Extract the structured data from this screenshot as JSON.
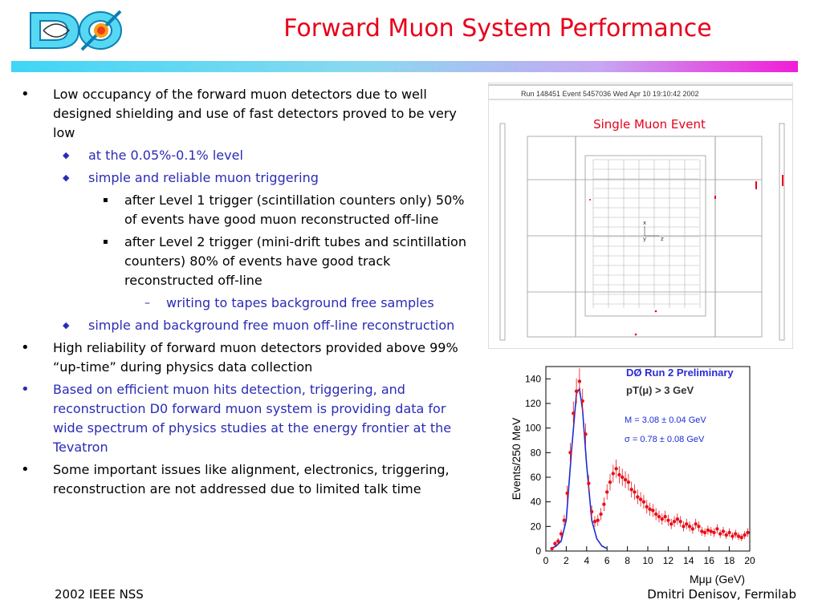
{
  "header": {
    "logo_text": "DØ",
    "title": "Forward Muon System Performance"
  },
  "bullets": [
    {
      "level": 1,
      "bullet": "•",
      "text": "Low occupancy of the forward muon detectors due to well designed shielding and use of fast detectors proved to be very low",
      "color": "#000000"
    },
    {
      "level": 2,
      "bullet": "◆",
      "text": " at the 0.05%-0.1% level",
      "color": "#2b2bb5"
    },
    {
      "level": 2,
      "bullet": "◆",
      "text": "simple and reliable muon triggering",
      "color": "#2b2bb5"
    },
    {
      "level": 3,
      "bullet": "▪",
      "text": "after Level 1 trigger (scintillation counters only) 50% of events have good muon reconstructed off-line",
      "color": "#000000"
    },
    {
      "level": 3,
      "bullet": "▪",
      "text": "after Level 2 trigger (mini-drift tubes and scintillation counters) 80% of events have good track  reconstructed off-line",
      "color": "#000000"
    },
    {
      "level": 4,
      "bullet": "–",
      "text": "writing to tapes background free samples",
      "color": "#2b2bb5"
    },
    {
      "level": 2,
      "bullet": "◆",
      "text": "simple and background free muon off-line reconstruction",
      "color": "#2b2bb5"
    },
    {
      "level": 1,
      "bullet": "•",
      "text": "High reliability of forward muon detectors provided above 99% “up-time” during physics data collection",
      "color": "#000000"
    },
    {
      "level": 1,
      "bullet": "•",
      "text": "Based on efficient muon hits detection, triggering, and reconstruction D0 forward muon system is providing data for wide spectrum of physics studies at the energy frontier at the Tevatron",
      "color": "#2b2bb5"
    },
    {
      "level": 1,
      "bullet": "•",
      "text": "Some important issues like alignment, electronics, triggering, reconstruction are not addressed due to limited talk time",
      "color": "#000000"
    }
  ],
  "event_display": {
    "header": "Run 148451 Event 5457036 Wed Apr 10 19:10:42 2002",
    "caption": "Single Muon Event",
    "axis_x": "x",
    "axis_y": "y",
    "axis_z": "z"
  },
  "chart_data": {
    "type": "scatter",
    "title": "DØ Run 2 Preliminary",
    "subtitle": "pT(μ) > 3 GeV",
    "xlabel": "Mμμ (GeV)",
    "ylabel": "Events/250 MeV",
    "xlim": [
      0,
      20
    ],
    "ylim": [
      0,
      150
    ],
    "xticks": [
      0,
      2,
      4,
      6,
      8,
      10,
      12,
      14,
      16,
      18,
      20
    ],
    "yticks": [
      0,
      20,
      40,
      60,
      80,
      100,
      120,
      140
    ],
    "annotations": [
      "M = 3.08 ± 0.04 GeV",
      "σ =  0.78 ± 0.08 GeV"
    ],
    "series": [
      {
        "points": [
          [
            0.6,
            2
          ],
          [
            0.9,
            6
          ],
          [
            1.2,
            8
          ],
          [
            1.5,
            14
          ],
          [
            1.8,
            25
          ],
          [
            2.1,
            47
          ],
          [
            2.4,
            80
          ],
          [
            2.7,
            112
          ],
          [
            3.0,
            130
          ],
          [
            3.3,
            138
          ],
          [
            3.6,
            122
          ],
          [
            3.9,
            95
          ],
          [
            4.2,
            55
          ],
          [
            4.5,
            32
          ],
          [
            4.8,
            24
          ],
          [
            5.1,
            25
          ],
          [
            5.4,
            30
          ],
          [
            5.7,
            38
          ],
          [
            6.0,
            48
          ],
          [
            6.3,
            56
          ],
          [
            6.6,
            63
          ],
          [
            6.9,
            67
          ],
          [
            7.2,
            62
          ],
          [
            7.5,
            60
          ],
          [
            7.8,
            58
          ],
          [
            8.1,
            56
          ],
          [
            8.4,
            50
          ],
          [
            8.7,
            48
          ],
          [
            9.0,
            44
          ],
          [
            9.3,
            42
          ],
          [
            9.6,
            40
          ],
          [
            9.9,
            36
          ],
          [
            10.2,
            34
          ],
          [
            10.5,
            33
          ],
          [
            10.8,
            30
          ],
          [
            11.1,
            28
          ],
          [
            11.4,
            26
          ],
          [
            11.7,
            28
          ],
          [
            12.0,
            25
          ],
          [
            12.3,
            22
          ],
          [
            12.6,
            24
          ],
          [
            12.9,
            26
          ],
          [
            13.2,
            24
          ],
          [
            13.5,
            20
          ],
          [
            13.8,
            22
          ],
          [
            14.1,
            20
          ],
          [
            14.4,
            18
          ],
          [
            14.7,
            22
          ],
          [
            15.0,
            20
          ],
          [
            15.3,
            16
          ],
          [
            15.6,
            15
          ],
          [
            15.9,
            17
          ],
          [
            16.2,
            16
          ],
          [
            16.5,
            15
          ],
          [
            16.8,
            18
          ],
          [
            17.1,
            14
          ],
          [
            17.4,
            16
          ],
          [
            17.7,
            13
          ],
          [
            18.0,
            15
          ],
          [
            18.3,
            12
          ],
          [
            18.6,
            14
          ],
          [
            18.9,
            12
          ],
          [
            19.2,
            11
          ],
          [
            19.5,
            13
          ],
          [
            19.8,
            15
          ]
        ],
        "color": "#e8101a"
      },
      {
        "fit": [
          [
            0.5,
            2
          ],
          [
            1.0,
            4
          ],
          [
            1.5,
            8
          ],
          [
            2.0,
            25
          ],
          [
            2.5,
            80
          ],
          [
            3.0,
            128
          ],
          [
            3.3,
            132
          ],
          [
            3.6,
            115
          ],
          [
            4.0,
            70
          ],
          [
            4.5,
            25
          ],
          [
            5.0,
            10
          ],
          [
            5.5,
            4
          ],
          [
            6.0,
            2
          ]
        ],
        "color": "#1a2bd6"
      }
    ]
  },
  "footer": {
    "left": "2002 IEEE NSS",
    "right": "Dmitri Denisov, Fermilab"
  }
}
